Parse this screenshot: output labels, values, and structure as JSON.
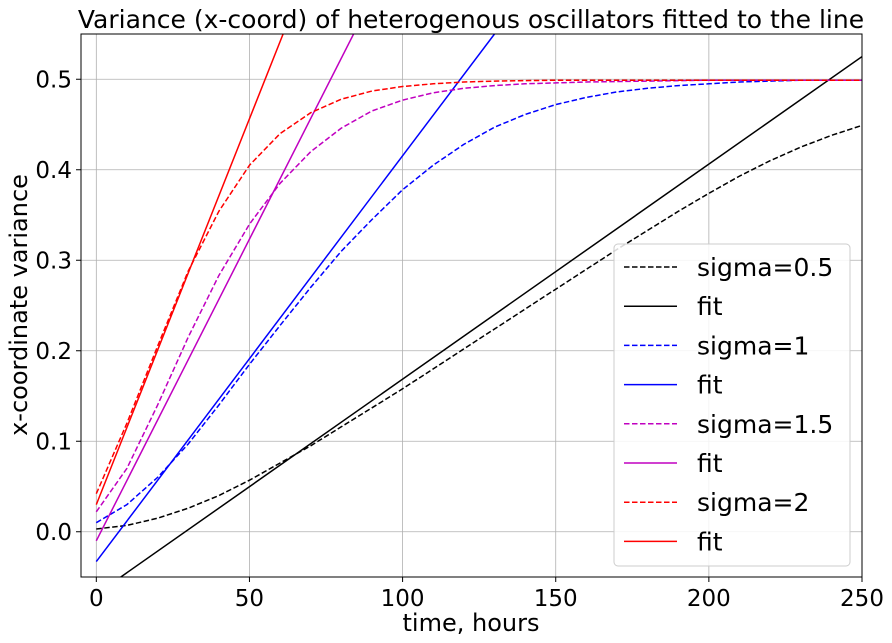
{
  "chart_data": {
    "type": "line",
    "title": "Variance (x-coord) of heterogenous oscillators fitted to the line",
    "xlabel": "time, hours",
    "ylabel": "x-coordinate variance",
    "xlim": [
      -5,
      250
    ],
    "ylim": [
      -0.05,
      0.55
    ],
    "xticks": [
      "0",
      "50",
      "100",
      "150",
      "200",
      "250"
    ],
    "yticks": [
      "0.0",
      "0.1",
      "0.2",
      "0.3",
      "0.4",
      "0.5"
    ],
    "grid": true,
    "legend_position": "lower-right",
    "series": [
      {
        "name": "sigma=0.5",
        "style": "dashed",
        "color": "#000000",
        "x": [
          0,
          10,
          20,
          30,
          40,
          50,
          60,
          70,
          80,
          90,
          100,
          110,
          120,
          130,
          140,
          150,
          160,
          170,
          180,
          190,
          200,
          210,
          220,
          230,
          240,
          250
        ],
        "y": [
          0.003,
          0.007,
          0.015,
          0.026,
          0.04,
          0.057,
          0.076,
          0.095,
          0.116,
          0.137,
          0.158,
          0.18,
          0.202,
          0.224,
          0.246,
          0.268,
          0.29,
          0.312,
          0.333,
          0.354,
          0.374,
          0.393,
          0.41,
          0.425,
          0.438,
          0.449
        ]
      },
      {
        "name": "fit",
        "style": "solid",
        "color": "#000000",
        "x": [
          0,
          250
        ],
        "y": [
          -0.069,
          0.525
        ]
      },
      {
        "name": "sigma=1",
        "style": "dashed",
        "color": "#0000ff",
        "x": [
          0,
          10,
          20,
          30,
          40,
          50,
          60,
          70,
          80,
          90,
          100,
          110,
          120,
          130,
          140,
          150,
          160,
          170,
          180,
          190,
          200,
          210,
          220,
          230,
          240,
          250
        ],
        "y": [
          0.01,
          0.03,
          0.06,
          0.097,
          0.14,
          0.185,
          0.228,
          0.27,
          0.31,
          0.345,
          0.378,
          0.405,
          0.428,
          0.447,
          0.461,
          0.472,
          0.48,
          0.486,
          0.49,
          0.493,
          0.495,
          0.497,
          0.498,
          0.499,
          0.499,
          0.499
        ]
      },
      {
        "name": "fit",
        "style": "solid",
        "color": "#0000ff",
        "x": [
          0,
          130
        ],
        "y": [
          -0.033,
          0.55
        ]
      },
      {
        "name": "sigma=1.5",
        "style": "dashed",
        "color": "#c000c0",
        "x": [
          0,
          10,
          20,
          30,
          40,
          50,
          60,
          70,
          80,
          90,
          100,
          110,
          120,
          130,
          140,
          160,
          180,
          200,
          220,
          250
        ],
        "y": [
          0.022,
          0.07,
          0.14,
          0.215,
          0.283,
          0.34,
          0.385,
          0.42,
          0.446,
          0.465,
          0.477,
          0.485,
          0.49,
          0.493,
          0.495,
          0.497,
          0.498,
          0.499,
          0.499,
          0.499
        ]
      },
      {
        "name": "fit",
        "style": "solid",
        "color": "#c000c0",
        "x": [
          0,
          84
        ],
        "y": [
          -0.01,
          0.55
        ]
      },
      {
        "name": "sigma=2",
        "style": "dashed",
        "color": "#ff0000",
        "x": [
          0,
          10,
          20,
          30,
          40,
          50,
          60,
          70,
          80,
          90,
          100,
          110,
          120,
          130,
          150,
          200,
          250
        ],
        "y": [
          0.042,
          0.12,
          0.205,
          0.288,
          0.354,
          0.405,
          0.44,
          0.463,
          0.478,
          0.487,
          0.492,
          0.495,
          0.497,
          0.498,
          0.499,
          0.499,
          0.499
        ]
      },
      {
        "name": "fit",
        "style": "solid",
        "color": "#ff0000",
        "x": [
          0,
          61
        ],
        "y": [
          0.03,
          0.55
        ]
      }
    ]
  }
}
